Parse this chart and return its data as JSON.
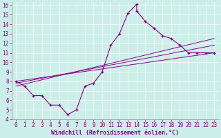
{
  "xlabel": "Windchill (Refroidissement éolien,°C)",
  "bg_color": "#cceee8",
  "line_color": "#880088",
  "xlim": [
    -0.5,
    23.5
  ],
  "ylim": [
    4,
    16.3
  ],
  "xticks": [
    0,
    1,
    2,
    3,
    4,
    5,
    6,
    7,
    8,
    9,
    10,
    11,
    12,
    13,
    14,
    15,
    16,
    17,
    18,
    19,
    20,
    21,
    22,
    23
  ],
  "yticks": [
    4,
    5,
    6,
    7,
    8,
    9,
    10,
    11,
    12,
    13,
    14,
    15,
    16
  ],
  "main_x": [
    0,
    1,
    2,
    3,
    4,
    5,
    6,
    7,
    8,
    9,
    10,
    11,
    12,
    13,
    14,
    14,
    15,
    16,
    17,
    18,
    19,
    20,
    21,
    22,
    23
  ],
  "main_y": [
    8.0,
    7.5,
    6.5,
    6.5,
    5.5,
    5.5,
    4.5,
    5.0,
    7.5,
    7.8,
    9.0,
    11.8,
    13.0,
    15.2,
    16.1,
    15.4,
    14.3,
    13.6,
    12.8,
    12.5,
    11.8,
    11.0,
    11.0,
    11.0,
    11.0
  ],
  "trend1_x": [
    0,
    23
  ],
  "trend1_y": [
    8.0,
    11.0
  ],
  "trend2_x": [
    0,
    23
  ],
  "trend2_y": [
    7.8,
    11.8
  ],
  "trend3_x": [
    0,
    23
  ],
  "trend3_y": [
    7.5,
    12.5
  ],
  "tick_fontsize": 5.5,
  "label_fontsize": 6.0,
  "grid_color": "#b0ddd8"
}
